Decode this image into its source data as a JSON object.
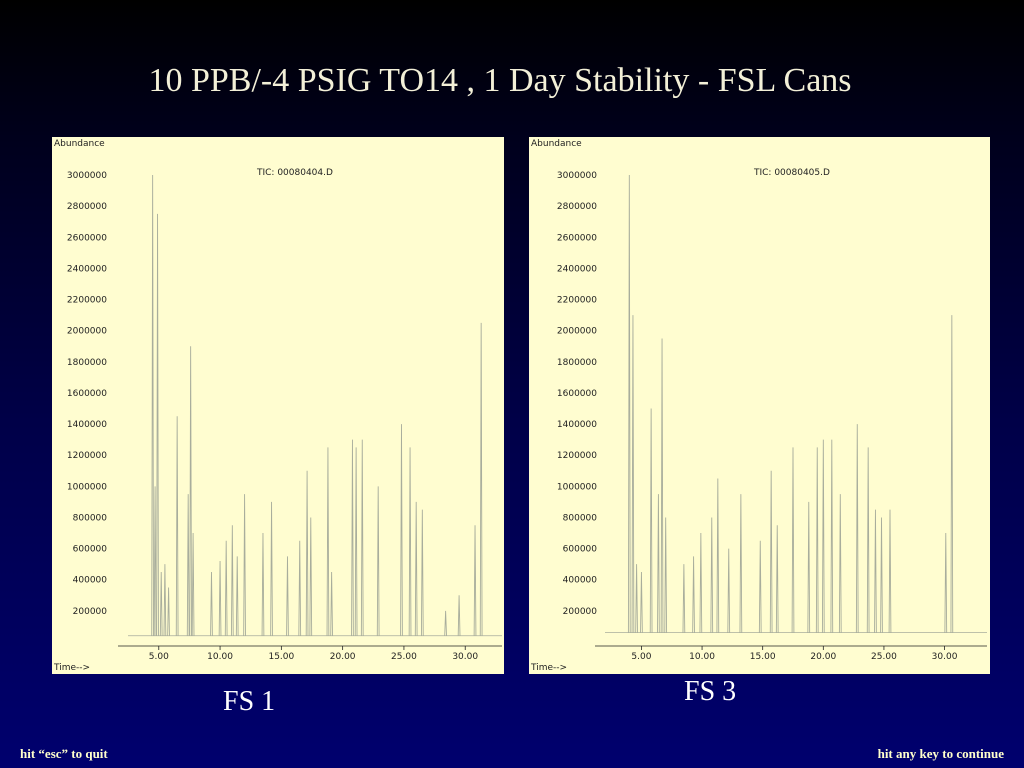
{
  "slide": {
    "title": "10 PPB/-4 PSIG TO14 , 1 Day Stability - FSL Cans",
    "nav": {
      "quit": "hit “esc” to quit",
      "continue": "hit any key to continue"
    }
  },
  "colors": {
    "trace": "#a8ad9c",
    "axis": "#222222",
    "panel_bg": "#fffdd0"
  },
  "chart_data": [
    {
      "type": "line",
      "caption": "FS 1",
      "file_label": "TIC: 00080404.D",
      "ylabel": "Abundance",
      "xlabel": "Time-->",
      "ylim": [
        0,
        3000000
      ],
      "xlim": [
        2.0,
        33.0
      ],
      "y_ticks": [
        {
          "value": 200000,
          "label": "200000"
        },
        {
          "value": 400000,
          "label": "400000"
        },
        {
          "value": 600000,
          "label": "600000"
        },
        {
          "value": 800000,
          "label": "800000"
        },
        {
          "value": 1000000,
          "label": "1000000"
        },
        {
          "value": 1200000,
          "label": "1200000"
        },
        {
          "value": 1400000,
          "label": "1400000"
        },
        {
          "value": 1600000,
          "label": "1600000"
        },
        {
          "value": 1800000,
          "label": "1800000"
        },
        {
          "value": 2000000,
          "label": "2000000"
        },
        {
          "value": 2200000,
          "label": "2200000"
        },
        {
          "value": 2400000,
          "label": "2400000"
        },
        {
          "value": 2600000,
          "label": "2600000"
        },
        {
          "value": 2800000,
          "label": "2800000"
        },
        {
          "value": 3000000,
          "label": "3000000"
        }
      ],
      "x_ticks": [
        {
          "value": 5,
          "label": "5.00"
        },
        {
          "value": 10,
          "label": "10.00"
        },
        {
          "value": 15,
          "label": "15.00"
        },
        {
          "value": 20,
          "label": "20.00"
        },
        {
          "value": 25,
          "label": "25.00"
        },
        {
          "value": 30,
          "label": "30.00"
        }
      ],
      "baseline": 40000,
      "peaks": [
        [
          4.5,
          3000000
        ],
        [
          4.7,
          1000000
        ],
        [
          4.9,
          2750000
        ],
        [
          5.2,
          450000
        ],
        [
          5.5,
          500000
        ],
        [
          5.8,
          350000
        ],
        [
          6.5,
          1450000
        ],
        [
          7.4,
          950000
        ],
        [
          7.6,
          1900000
        ],
        [
          7.8,
          700000
        ],
        [
          9.3,
          450000
        ],
        [
          10.0,
          520000
        ],
        [
          10.5,
          650000
        ],
        [
          11.0,
          750000
        ],
        [
          11.4,
          550000
        ],
        [
          12.0,
          950000
        ],
        [
          13.5,
          700000
        ],
        [
          14.2,
          900000
        ],
        [
          15.5,
          550000
        ],
        [
          16.5,
          650000
        ],
        [
          17.1,
          1100000
        ],
        [
          17.4,
          800000
        ],
        [
          18.8,
          1250000
        ],
        [
          19.1,
          450000
        ],
        [
          20.8,
          1300000
        ],
        [
          21.1,
          1250000
        ],
        [
          21.6,
          1300000
        ],
        [
          22.9,
          1000000
        ],
        [
          24.8,
          1400000
        ],
        [
          25.5,
          1250000
        ],
        [
          26.0,
          900000
        ],
        [
          26.5,
          850000
        ],
        [
          28.4,
          200000
        ],
        [
          29.5,
          300000
        ],
        [
          30.8,
          750000
        ],
        [
          31.3,
          2050000
        ]
      ]
    },
    {
      "type": "line",
      "caption": "FS 3",
      "file_label": "TIC: 00080405.D",
      "ylabel": "Abundance",
      "xlabel": "Time-->",
      "ylim": [
        0,
        3000000
      ],
      "xlim": [
        1.5,
        33.5
      ],
      "y_ticks": [
        {
          "value": 200000,
          "label": "200000"
        },
        {
          "value": 400000,
          "label": "400000"
        },
        {
          "value": 600000,
          "label": "600000"
        },
        {
          "value": 800000,
          "label": "800000"
        },
        {
          "value": 1000000,
          "label": "1000000"
        },
        {
          "value": 1200000,
          "label": "1200000"
        },
        {
          "value": 1400000,
          "label": "1400000"
        },
        {
          "value": 1600000,
          "label": "1600000"
        },
        {
          "value": 1800000,
          "label": "1800000"
        },
        {
          "value": 2000000,
          "label": "2000000"
        },
        {
          "value": 2200000,
          "label": "2200000"
        },
        {
          "value": 2400000,
          "label": "2400000"
        },
        {
          "value": 2600000,
          "label": "2600000"
        },
        {
          "value": 2800000,
          "label": "2800000"
        },
        {
          "value": 3000000,
          "label": "3000000"
        }
      ],
      "x_ticks": [
        {
          "value": 5,
          "label": "5.00"
        },
        {
          "value": 10,
          "label": "10.00"
        },
        {
          "value": 15,
          "label": "15.00"
        },
        {
          "value": 20,
          "label": "20.00"
        },
        {
          "value": 25,
          "label": "25.00"
        },
        {
          "value": 30,
          "label": "30.00"
        }
      ],
      "baseline": 60000,
      "peaks": [
        [
          4.0,
          3000000
        ],
        [
          4.3,
          2100000
        ],
        [
          4.6,
          500000
        ],
        [
          5.0,
          450000
        ],
        [
          5.8,
          1500000
        ],
        [
          6.4,
          950000
        ],
        [
          6.7,
          1950000
        ],
        [
          7.0,
          800000
        ],
        [
          8.5,
          500000
        ],
        [
          9.3,
          550000
        ],
        [
          9.9,
          700000
        ],
        [
          10.8,
          800000
        ],
        [
          11.3,
          1050000
        ],
        [
          12.2,
          600000
        ],
        [
          13.2,
          950000
        ],
        [
          14.8,
          650000
        ],
        [
          15.7,
          1100000
        ],
        [
          16.2,
          750000
        ],
        [
          17.5,
          1250000
        ],
        [
          18.8,
          900000
        ],
        [
          19.5,
          1250000
        ],
        [
          20.0,
          1300000
        ],
        [
          20.7,
          1300000
        ],
        [
          21.4,
          950000
        ],
        [
          22.8,
          1400000
        ],
        [
          23.7,
          1250000
        ],
        [
          24.3,
          850000
        ],
        [
          24.8,
          800000
        ],
        [
          25.5,
          850000
        ],
        [
          30.1,
          700000
        ],
        [
          30.6,
          2100000
        ]
      ]
    }
  ]
}
